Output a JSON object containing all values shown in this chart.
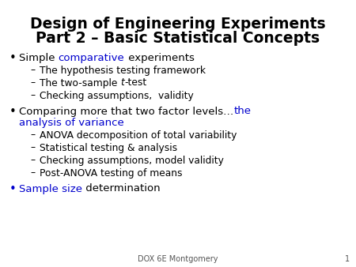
{
  "title_line1": "Design of Engineering Experiments",
  "title_line2": "Part 2 – Basic Statistical Concepts",
  "background_color": "#ffffff",
  "title_color": "#000000",
  "blue_color": "#0000cd",
  "black_color": "#000000",
  "gray_color": "#555555",
  "title_fontsize": 13.5,
  "bullet_fontsize": 9.5,
  "sub_fontsize": 8.8,
  "footer_fontsize": 7.0,
  "footer_text": "DOX 6E Montgomery",
  "footer_number": "1",
  "fig_width": 4.5,
  "fig_height": 3.38,
  "dpi": 100
}
